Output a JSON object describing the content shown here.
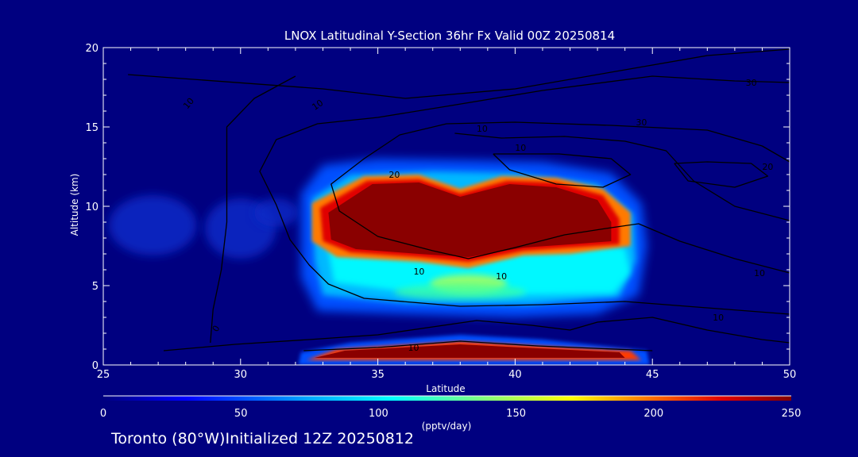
{
  "chart_data": {
    "type": "heatmap",
    "title": "LNOX Latitudinal Y-Section 36hr  Fx Valid 00Z 20250814",
    "xlabel": "Latitude",
    "ylabel": "Altitude (km)",
    "xlim": [
      25,
      50
    ],
    "ylim": [
      0,
      20
    ],
    "x_ticks": [
      "25",
      "30",
      "35",
      "40",
      "45",
      "50"
    ],
    "y_ticks": [
      "0",
      "5",
      "10",
      "15",
      "20"
    ],
    "colorbar": {
      "label": "(pptv/day)",
      "min": 0,
      "max": 250,
      "ticks": [
        "0",
        "50",
        "100",
        "150",
        "200",
        "250"
      ]
    },
    "lnox_regions": [
      {
        "name": "upper-maximum",
        "lat_range": [
          32.3,
          44.8
        ],
        "alt_range": [
          3.2,
          12.8
        ],
        "peak_value": 250
      },
      {
        "name": "surface-band",
        "lat_range": [
          32.2,
          44.8
        ],
        "alt_range": [
          0.0,
          1.5
        ],
        "peak_value": 250
      },
      {
        "name": "weak-west-patch",
        "lat_range": [
          25.3,
          31.5
        ],
        "alt_range": [
          6.5,
          10.5
        ],
        "peak_value": 30
      }
    ],
    "contour_labels": [
      "10",
      "20",
      "10",
      "10",
      "30",
      "30",
      "20",
      "10",
      "10",
      "10",
      "10",
      "10",
      "10",
      "0"
    ],
    "contours": [
      {
        "label": "10",
        "points": [
          [
            25.9,
            18.3
          ],
          [
            33,
            17.4
          ],
          [
            36,
            16.8
          ],
          [
            40,
            17.4
          ],
          [
            44,
            18.6
          ],
          [
            47,
            19.5
          ],
          [
            50,
            19.9
          ]
        ]
      },
      {
        "label": "10",
        "points": [
          [
            50,
            17.8
          ],
          [
            48,
            17.9
          ],
          [
            45,
            18.2
          ],
          [
            41,
            17.3
          ],
          [
            37.5,
            16.3
          ],
          [
            35,
            15.6
          ],
          [
            32.8,
            15.2
          ],
          [
            31.3,
            14.2
          ],
          [
            30.7,
            12.2
          ],
          [
            31.3,
            10.1
          ],
          [
            31.8,
            7.9
          ],
          [
            32.5,
            6.3
          ],
          [
            33.2,
            5.1
          ],
          [
            34.5,
            4.2
          ],
          [
            38,
            3.7
          ],
          [
            41,
            3.8
          ],
          [
            44,
            4
          ],
          [
            47,
            3.6
          ],
          [
            50,
            3.2
          ]
        ]
      },
      {
        "label": "20",
        "points": [
          [
            50,
            12.8
          ],
          [
            49,
            13.8
          ],
          [
            47,
            14.8
          ],
          [
            43.5,
            15.1
          ],
          [
            40,
            15.3
          ],
          [
            37.5,
            15.2
          ],
          [
            35.8,
            14.5
          ],
          [
            34.5,
            13
          ],
          [
            33.3,
            11.4
          ],
          [
            33.6,
            9.7
          ],
          [
            35,
            8.1
          ],
          [
            37,
            7.2
          ],
          [
            38.3,
            6.7
          ],
          [
            40,
            7.4
          ],
          [
            41.8,
            8.2
          ],
          [
            43.3,
            8.6
          ],
          [
            44.5,
            8.9
          ],
          [
            46,
            7.8
          ],
          [
            48,
            6.7
          ],
          [
            50,
            5.8
          ]
        ]
      },
      {
        "label": "30",
        "points": [
          [
            37.8,
            14.6
          ],
          [
            39.5,
            14.3
          ],
          [
            41.8,
            14.4
          ],
          [
            44,
            14.1
          ],
          [
            45.5,
            13.5
          ],
          [
            46.5,
            11.6
          ],
          [
            48,
            10
          ],
          [
            50,
            9.1
          ]
        ]
      },
      {
        "label": "30",
        "points": [
          [
            39.2,
            13.3
          ],
          [
            41.6,
            13.3
          ],
          [
            43.5,
            13
          ],
          [
            44.2,
            12
          ],
          [
            43.2,
            11.2
          ],
          [
            41.5,
            11.4
          ],
          [
            39.8,
            12.3
          ],
          [
            39.2,
            13.3
          ]
        ]
      },
      {
        "label": "30",
        "points": [
          [
            45.8,
            12.7
          ],
          [
            47,
            12.8
          ],
          [
            48.6,
            12.7
          ],
          [
            49.2,
            11.9
          ],
          [
            48,
            11.2
          ],
          [
            46.3,
            11.6
          ],
          [
            45.8,
            12.7
          ]
        ]
      },
      {
        "label": "0",
        "points": [
          [
            28.9,
            1.4
          ],
          [
            29,
            3.5
          ],
          [
            29.3,
            6
          ],
          [
            29.5,
            9
          ],
          [
            29.5,
            12
          ],
          [
            29.5,
            15
          ],
          [
            30.5,
            16.8
          ],
          [
            32,
            18.2
          ]
        ]
      },
      {
        "label": "0",
        "points": [
          [
            32.3,
            0.9
          ],
          [
            35,
            1.1
          ],
          [
            38,
            1.5
          ],
          [
            40.8,
            1.2
          ],
          [
            45,
            0.9
          ]
        ]
      },
      {
        "label": "10",
        "points": [
          [
            27.2,
            0.9
          ],
          [
            29.8,
            1.3
          ],
          [
            32.5,
            1.6
          ],
          [
            35,
            1.9
          ],
          [
            37,
            2.4
          ],
          [
            38.6,
            2.8
          ],
          [
            40.6,
            2.5
          ],
          [
            42,
            2.2
          ],
          [
            43,
            2.7
          ],
          [
            45,
            3
          ],
          [
            47,
            2.2
          ],
          [
            49,
            1.6
          ],
          [
            50,
            1.4
          ]
        ]
      }
    ]
  },
  "footer": {
    "text": "Toronto (80°W)Initialized 12Z 20250812"
  },
  "colors": {
    "background": "#000080",
    "contour": "#000000",
    "text": "#ffffff"
  }
}
